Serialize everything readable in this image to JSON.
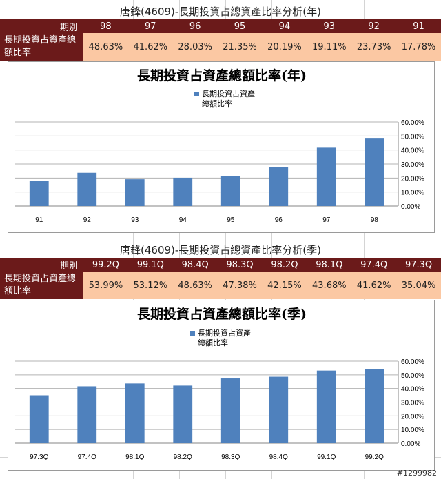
{
  "table_year": {
    "title": "唐鋒(4609)-長期投資占總資產比率分析(年)",
    "period_label": "期別",
    "row_label": "長期投資占資產總額比率",
    "periods": [
      "98",
      "97",
      "96",
      "95",
      "94",
      "93",
      "92",
      "91"
    ],
    "values": [
      "48.63%",
      "41.62%",
      "28.03%",
      "21.35%",
      "20.19%",
      "19.11%",
      "23.73%",
      "17.78%"
    ]
  },
  "table_quarter": {
    "title": "唐鋒(4609)-長期投資占總資產比率分析(季)",
    "period_label": "期別",
    "row_label": "長期投資占資產總額比率",
    "periods": [
      "99.2Q",
      "99.1Q",
      "98.4Q",
      "98.3Q",
      "98.2Q",
      "98.1Q",
      "97.4Q",
      "97.3Q"
    ],
    "values": [
      "53.99%",
      "53.12%",
      "48.63%",
      "47.38%",
      "42.15%",
      "43.68%",
      "41.62%",
      "35.04%"
    ]
  },
  "chart_data": [
    {
      "type": "bar",
      "title": "長期投資占資產總額比率(年)",
      "legend": [
        "長期投資占資產",
        "總額比率"
      ],
      "categories": [
        "91",
        "92",
        "93",
        "94",
        "95",
        "96",
        "97",
        "98"
      ],
      "values": [
        17.78,
        23.73,
        19.11,
        20.19,
        21.35,
        28.03,
        41.62,
        48.63
      ],
      "yticks": [
        "60.00%",
        "50.00%",
        "40.00%",
        "30.00%",
        "20.00%",
        "10.00%",
        "0.00%"
      ],
      "ylim": [
        0,
        60
      ],
      "ylabel": "",
      "xlabel": "",
      "legend_position": "top-center",
      "grid": true,
      "color": "#4f81bd"
    },
    {
      "type": "bar",
      "title": "長期投資占資產總額比率(季)",
      "legend": [
        "長期投資占資產",
        "總額比率"
      ],
      "categories": [
        "97.3Q",
        "97.4Q",
        "98.1Q",
        "98.2Q",
        "98.3Q",
        "98.4Q",
        "99.1Q",
        "99.2Q"
      ],
      "values": [
        35.04,
        41.62,
        43.68,
        42.15,
        47.38,
        48.63,
        53.12,
        53.99
      ],
      "yticks": [
        "60.00%",
        "50.00%",
        "40.00%",
        "30.00%",
        "20.00%",
        "10.00%",
        "0.00%"
      ],
      "ylim": [
        0,
        60
      ],
      "ylabel": "",
      "xlabel": "",
      "legend_position": "top-center",
      "grid": true,
      "color": "#4f81bd"
    }
  ],
  "watermark": "#1299982"
}
